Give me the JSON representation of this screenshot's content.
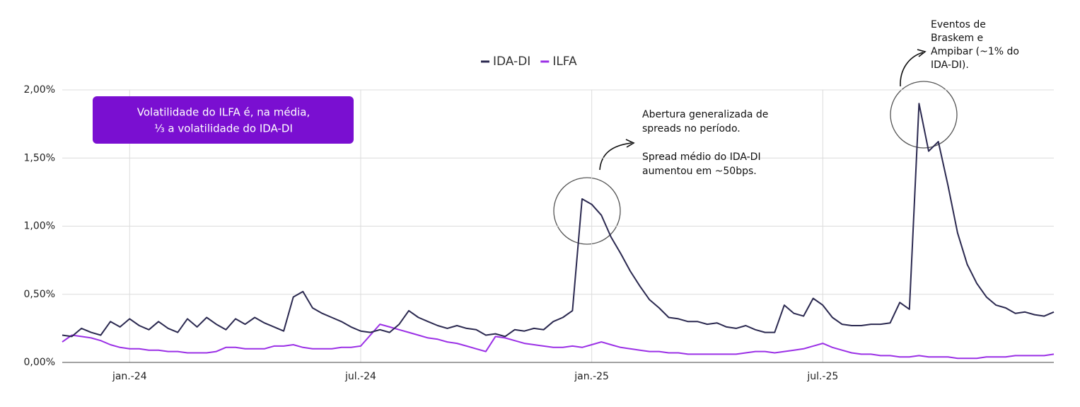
{
  "chart_data": {
    "type": "line",
    "categories": [
      null,
      null,
      null,
      null,
      null,
      null,
      null,
      "jan.-24",
      null,
      null,
      null,
      null,
      null,
      null,
      null,
      null,
      null,
      null,
      null,
      null,
      null,
      null,
      null,
      null,
      null,
      null,
      null,
      null,
      null,
      null,
      null,
      "jul.-24",
      null,
      null,
      null,
      null,
      null,
      null,
      null,
      null,
      null,
      null,
      null,
      null,
      null,
      null,
      null,
      null,
      null,
      null,
      null,
      null,
      null,
      null,
      null,
      "jan.-25",
      null,
      null,
      null,
      null,
      null,
      null,
      null,
      null,
      null,
      null,
      null,
      null,
      null,
      null,
      null,
      null,
      null,
      null,
      null,
      null,
      null,
      null,
      null,
      "jul.-25",
      null,
      null,
      null,
      null,
      null,
      null,
      null,
      null,
      null,
      null,
      null,
      null,
      null,
      null,
      null,
      null,
      null,
      null,
      null,
      null,
      null,
      null,
      null,
      null
    ],
    "series": [
      {
        "name": "IDA-DI",
        "color": "#2b2950",
        "values": [
          0.2,
          0.19,
          0.25,
          0.22,
          0.2,
          0.3,
          0.26,
          0.32,
          0.27,
          0.24,
          0.3,
          0.25,
          0.22,
          0.32,
          0.26,
          0.33,
          0.28,
          0.24,
          0.32,
          0.28,
          0.33,
          0.29,
          0.26,
          0.23,
          0.48,
          0.52,
          0.4,
          0.36,
          0.33,
          0.3,
          0.26,
          0.23,
          0.22,
          0.24,
          0.22,
          0.28,
          0.38,
          0.33,
          0.3,
          0.27,
          0.25,
          0.27,
          0.25,
          0.24,
          0.2,
          0.21,
          0.19,
          0.24,
          0.23,
          0.25,
          0.24,
          0.3,
          0.33,
          0.38,
          1.2,
          1.16,
          1.08,
          0.92,
          0.8,
          0.67,
          0.56,
          0.46,
          0.4,
          0.33,
          0.32,
          0.3,
          0.3,
          0.28,
          0.29,
          0.26,
          0.25,
          0.27,
          0.24,
          0.22,
          0.22,
          0.42,
          0.36,
          0.34,
          0.47,
          0.42,
          0.33,
          0.28,
          0.27,
          0.27,
          0.28,
          0.28,
          0.29,
          0.44,
          0.39,
          1.9,
          1.55,
          1.62,
          1.3,
          0.95,
          0.72,
          0.58,
          0.48,
          0.42,
          0.4,
          0.36,
          0.37,
          0.35,
          0.34,
          0.37
        ]
      },
      {
        "name": "ILFA",
        "color": "#9b30e6",
        "values": [
          0.15,
          0.2,
          0.19,
          0.18,
          0.16,
          0.13,
          0.11,
          0.1,
          0.1,
          0.09,
          0.09,
          0.08,
          0.08,
          0.07,
          0.07,
          0.07,
          0.08,
          0.11,
          0.11,
          0.1,
          0.1,
          0.1,
          0.12,
          0.12,
          0.13,
          0.11,
          0.1,
          0.1,
          0.1,
          0.11,
          0.11,
          0.12,
          0.2,
          0.28,
          0.26,
          0.24,
          0.22,
          0.2,
          0.18,
          0.17,
          0.15,
          0.14,
          0.12,
          0.1,
          0.08,
          0.19,
          0.18,
          0.16,
          0.14,
          0.13,
          0.12,
          0.11,
          0.11,
          0.12,
          0.11,
          0.13,
          0.15,
          0.13,
          0.11,
          0.1,
          0.09,
          0.08,
          0.08,
          0.07,
          0.07,
          0.06,
          0.06,
          0.06,
          0.06,
          0.06,
          0.06,
          0.07,
          0.08,
          0.08,
          0.07,
          0.08,
          0.09,
          0.1,
          0.12,
          0.14,
          0.11,
          0.09,
          0.07,
          0.06,
          0.06,
          0.05,
          0.05,
          0.04,
          0.04,
          0.05,
          0.04,
          0.04,
          0.04,
          0.03,
          0.03,
          0.03,
          0.04,
          0.04,
          0.04,
          0.05,
          0.05,
          0.05,
          0.05,
          0.06
        ]
      }
    ],
    "ylim": [
      0,
      2
    ],
    "yticks": [
      {
        "value": 0,
        "label": "0,00%"
      },
      {
        "value": 0.5,
        "label": "0,50%"
      },
      {
        "value": 1,
        "label": "1,00%"
      },
      {
        "value": 1.5,
        "label": "1,50%"
      },
      {
        "value": 2,
        "label": "2,00%"
      }
    ],
    "grid": true,
    "legend": "top",
    "callout": {
      "lines": [
        "Volatilidade do ILFA é, na média,",
        "⅓ a volatilidade do IDA-DI"
      ],
      "color": "#7a0fd1"
    },
    "annotations": [
      {
        "lines": [
          "Abertura generalizada de",
          "spreads no período.",
          "",
          "Spread médio do IDA-DI",
          "aumentou em ~50bps."
        ]
      },
      {
        "lines": [
          "Eventos de",
          "Braskem e",
          "Ampibar (~1% do",
          "IDA-DI)."
        ]
      }
    ]
  }
}
